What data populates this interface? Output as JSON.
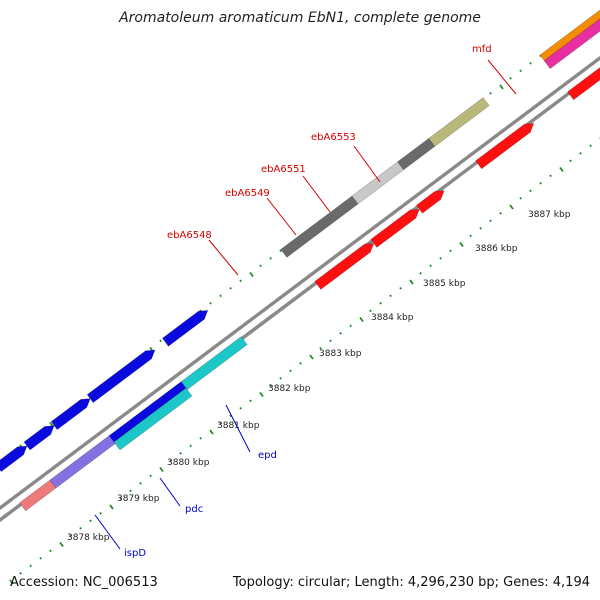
{
  "title": "Aromatoleum aromaticum EbN1, complete genome",
  "footer": {
    "accession": "Accession: NC_006513",
    "topology": "Topology: circular; Length: 4,296,230 bp; Genes: 4,194"
  },
  "colors": {
    "ruler_dots": "#1f8a1f",
    "backbone": "#8a8a8a",
    "gene_label_red": "#d40000",
    "gene_label_blue": "#0000cc",
    "red": "#ff1010",
    "blue": "#0a0adf",
    "cyan": "#1ec7c7",
    "olive": "#b8b87a",
    "dark_gray": "#6a6a6a",
    "light_gray": "#c8c8c8",
    "orange": "#f28c00",
    "magenta": "#e62fa0",
    "purple": "#8470e0",
    "salmon": "#ee7a7a"
  },
  "ticks": [
    {
      "label": "3878 kbp"
    },
    {
      "label": "3879 kbp"
    },
    {
      "label": "3880 kbp"
    },
    {
      "label": "3881 kbp"
    },
    {
      "label": "3882 kbp"
    },
    {
      "label": "3883 kbp"
    },
    {
      "label": "3884 kbp"
    },
    {
      "label": "3885 kbp"
    },
    {
      "label": "3886 kbp"
    },
    {
      "label": "3887 kbp"
    }
  ],
  "gene_labels": [
    {
      "name": "mfd",
      "color": "gene_label_red"
    },
    {
      "name": "ebA6553",
      "color": "gene_label_red"
    },
    {
      "name": "ebA6551",
      "color": "gene_label_red"
    },
    {
      "name": "ebA6549",
      "color": "gene_label_red"
    },
    {
      "name": "ebA6548",
      "color": "gene_label_red"
    },
    {
      "name": "epd",
      "color": "gene_label_blue"
    },
    {
      "name": "pdc",
      "color": "gene_label_blue"
    },
    {
      "name": "ispD",
      "color": "gene_label_blue"
    }
  ]
}
